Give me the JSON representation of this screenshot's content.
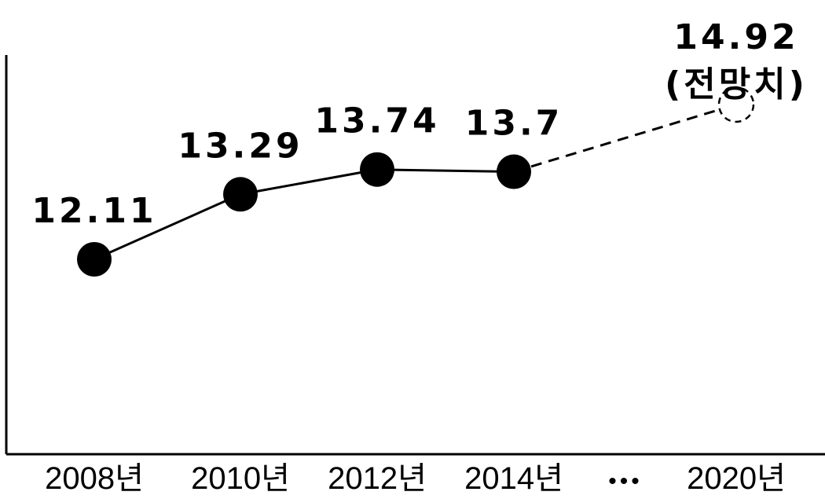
{
  "chart_data": {
    "type": "line",
    "categories": [
      "2008년",
      "2010년",
      "2012년",
      "2014년",
      "2020년"
    ],
    "values": [
      12.11,
      13.29,
      13.74,
      13.7,
      14.92
    ],
    "labels": [
      "12.11",
      "13.29",
      "13.74",
      "13.7",
      "14.92"
    ],
    "projection_note": "(전망치)",
    "ellipsis": "•••",
    "title": "",
    "xlabel": "",
    "ylabel": "",
    "grid": false,
    "line_style": {
      "actual": "solid",
      "projected": "dashed"
    },
    "colors": {
      "line": "#000000",
      "marker": "#000000",
      "projected_marker_fill": "#ffffff",
      "background": "#ffffff"
    }
  }
}
